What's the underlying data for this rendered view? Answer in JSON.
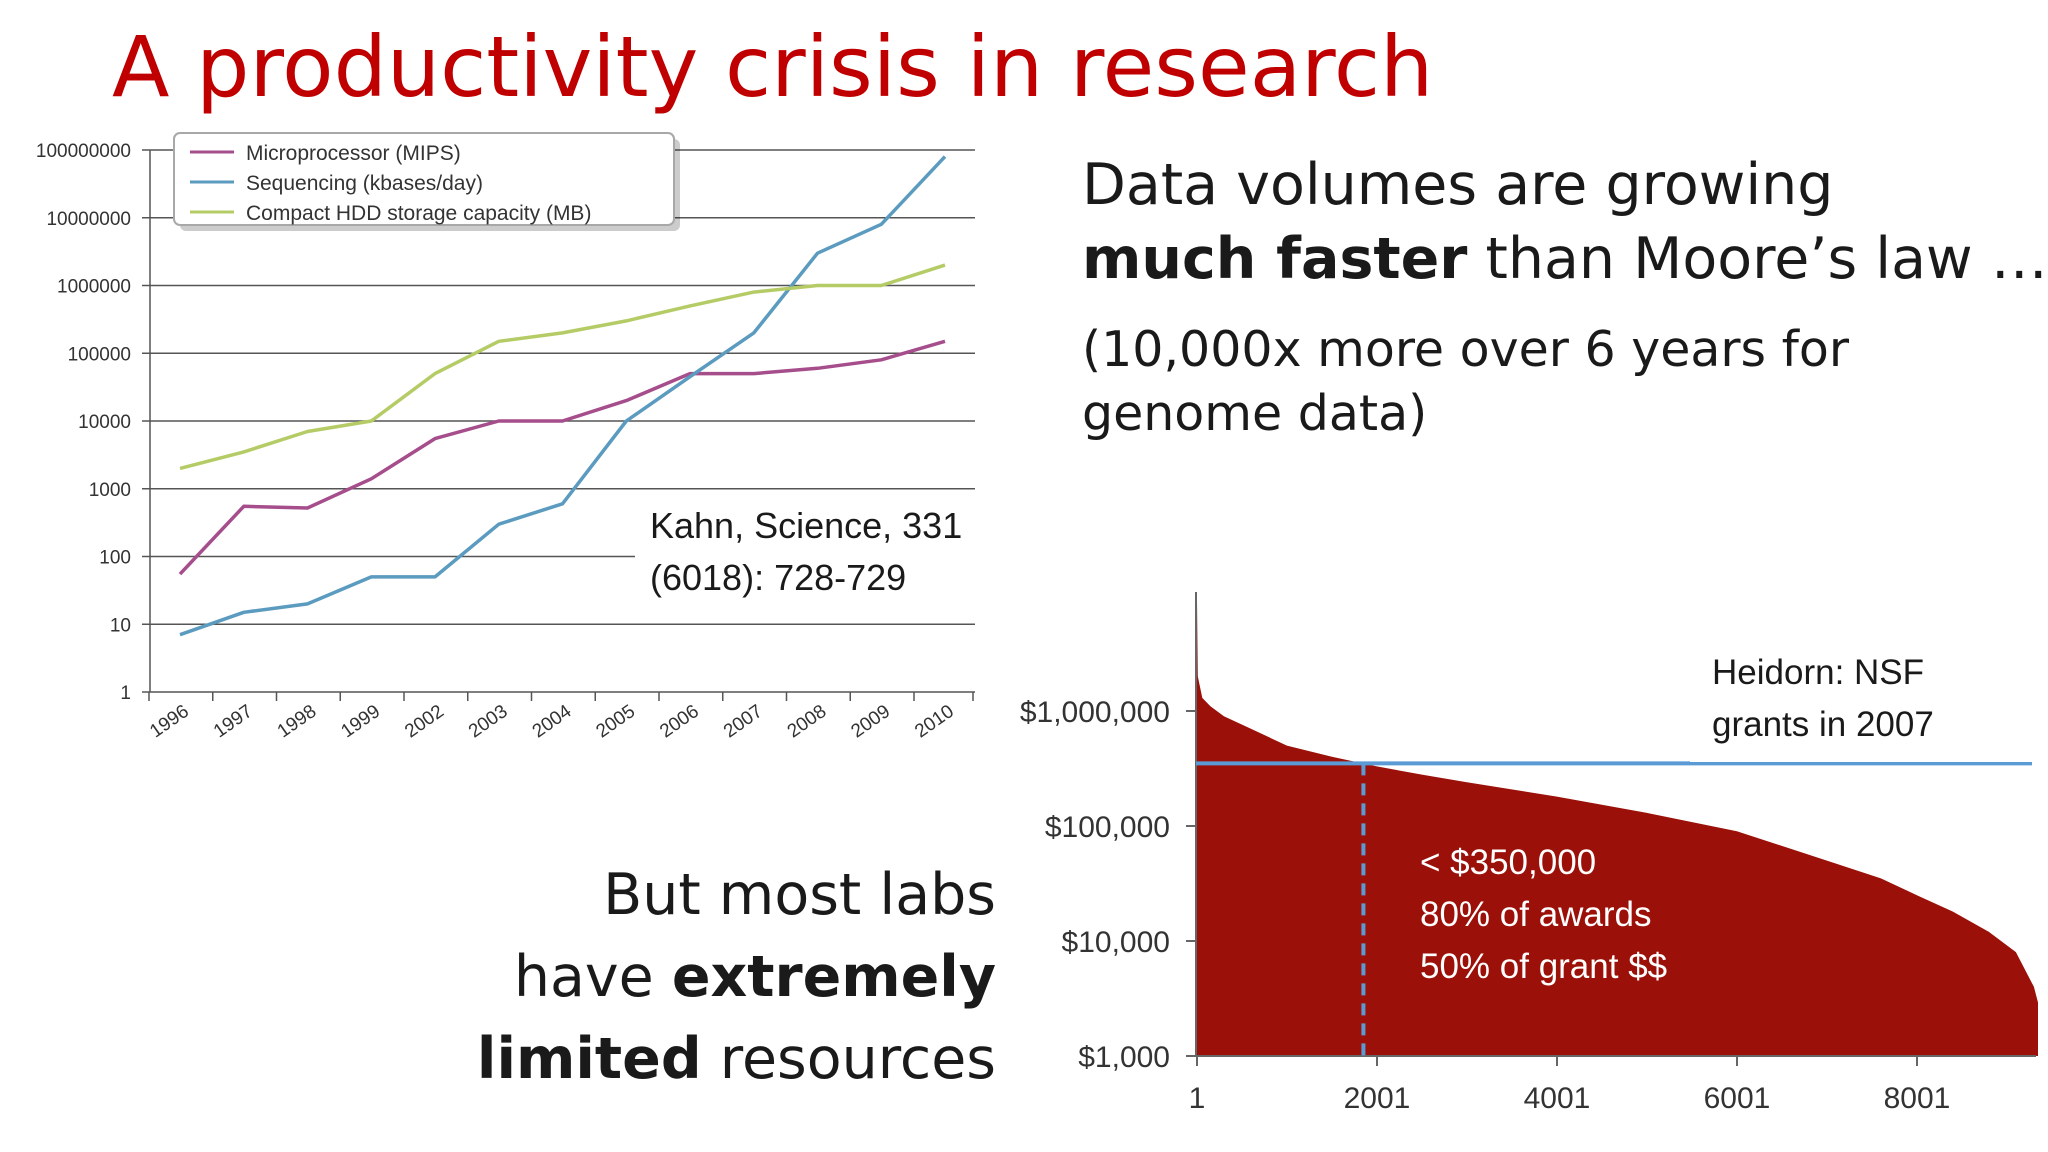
{
  "slide": {
    "title": "A productivity crisis in research",
    "right_text": {
      "line1": "Data volumes are growing",
      "line2_bold": "much faster",
      "line2_rest": " than Moore’s law …",
      "note1": "(10,000x more over 6 years for",
      "note2": "genome data)"
    },
    "bottom_text": {
      "line1": "But most labs",
      "line2_pre": "have ",
      "line2_bold": "extremely",
      "line3_bold": "limited",
      "line3_rest": " resources"
    }
  },
  "chart_data": [
    {
      "type": "line",
      "scale": "log10",
      "categories": [
        "1996",
        "1997",
        "1998",
        "1999",
        "2002",
        "2003",
        "2004",
        "2005",
        "2006",
        "2007",
        "2008",
        "2009",
        "2010"
      ],
      "ytick_labels": [
        "1",
        "10",
        "100",
        "1000",
        "10000",
        "100000",
        "1000000",
        "10000000",
        "100000000"
      ],
      "ylim": [
        1,
        100000000
      ],
      "grid": true,
      "legend_position": "top-left",
      "series": [
        {
          "name": "Microprocessor (MIPS)",
          "color": "#a64d8c",
          "values": [
            55,
            550,
            520,
            1400,
            5500,
            10000,
            10000,
            20000,
            50000,
            50000,
            60000,
            80000,
            150000
          ]
        },
        {
          "name": "Sequencing (kbases/day)",
          "color": "#5b9bbf",
          "values": [
            7,
            15,
            20,
            50,
            50,
            300,
            600,
            10000,
            45000,
            200000,
            3000000,
            8000000,
            80000000
          ]
        },
        {
          "name": "Compact HDD storage capacity (MB)",
          "color": "#b5cc66",
          "values": [
            2000,
            3500,
            7000,
            10000,
            50000,
            150000,
            200000,
            300000,
            500000,
            800000,
            1000000,
            1000000,
            2000000
          ]
        }
      ],
      "annotation": {
        "line1": "Kahn, Science, 331",
        "line2": "(6018): 728-729"
      }
    },
    {
      "type": "area",
      "scale": "log10",
      "xtick_labels": [
        "1",
        "2001",
        "4001",
        "6001",
        "8001"
      ],
      "xticks": [
        1,
        2001,
        4001,
        6001,
        8001
      ],
      "xlim": [
        1,
        9500
      ],
      "ytick_labels": [
        "$1,000",
        "$10,000",
        "$100,000",
        "$1,000,000"
      ],
      "ylim": [
        1000,
        10000000
      ],
      "fill_color": "#9b1109",
      "curve": [
        {
          "rank": 1,
          "amount": 9000000
        },
        {
          "rank": 10,
          "amount": 2000000
        },
        {
          "rank": 60,
          "amount": 1300000
        },
        {
          "rank": 150,
          "amount": 1100000
        },
        {
          "rank": 300,
          "amount": 900000
        },
        {
          "rank": 600,
          "amount": 700000
        },
        {
          "rank": 1000,
          "amount": 500000
        },
        {
          "rank": 1500,
          "amount": 400000
        },
        {
          "rank": 2000,
          "amount": 330000
        },
        {
          "rank": 2500,
          "amount": 280000
        },
        {
          "rank": 3000,
          "amount": 240000
        },
        {
          "rank": 4000,
          "amount": 180000
        },
        {
          "rank": 5000,
          "amount": 130000
        },
        {
          "rank": 6000,
          "amount": 90000
        },
        {
          "rank": 7000,
          "amount": 50000
        },
        {
          "rank": 7600,
          "amount": 35000
        },
        {
          "rank": 8000,
          "amount": 25000
        },
        {
          "rank": 8400,
          "amount": 18000
        },
        {
          "rank": 8800,
          "amount": 12000
        },
        {
          "rank": 9100,
          "amount": 8000
        },
        {
          "rank": 9300,
          "amount": 4000
        },
        {
          "rank": 9400,
          "amount": 2000
        },
        {
          "rank": 9450,
          "amount": 1000
        }
      ],
      "threshold_line": {
        "amount": 350000,
        "color": "#5b9bd5"
      },
      "cutoff_line": {
        "rank": 1850,
        "color": "#5b9bd5",
        "style": "dashed"
      },
      "annotation_title": {
        "line1": "Heidorn: NSF",
        "line2": "grants in 2007"
      },
      "annotation_stats": {
        "line1": "< $350,000",
        "line2": "80% of awards",
        "line3": "50% of grant $$"
      }
    }
  ]
}
